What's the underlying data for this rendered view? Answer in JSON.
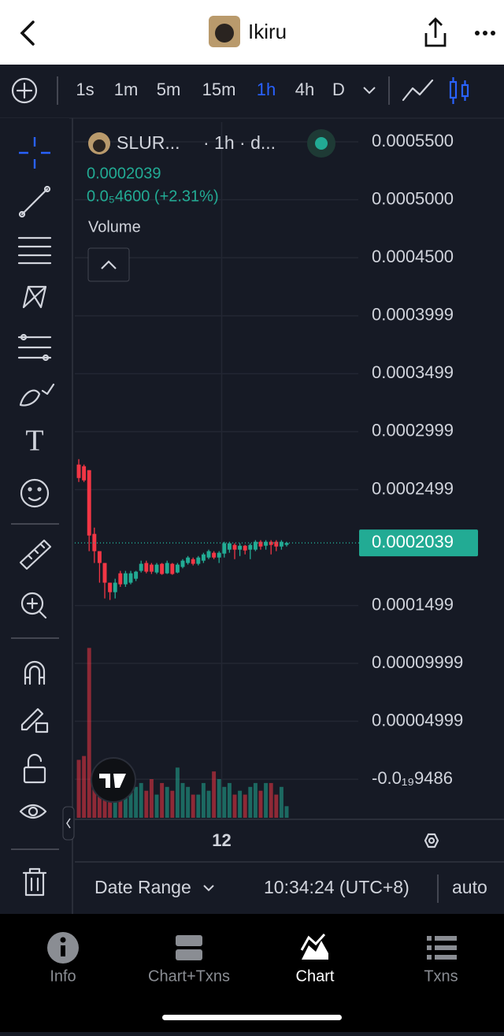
{
  "header": {
    "title": "Ikiru"
  },
  "timeframes": [
    "1s",
    "1m",
    "5m",
    "15m",
    "1h",
    "4h",
    "D"
  ],
  "chart_data": {
    "type": "candlestick",
    "symbol": "SLUR...",
    "interval": "· 1h · d...",
    "change": "0.0₅4600 (+2.31%)",
    "volume_title": "Volume",
    "up_color": "#22ab94",
    "down_color": "#f23645",
    "grid": true,
    "last_price": 0.0002039,
    "open": [
      0.0002715,
      0.0002701,
      0.0002667,
      0.0002117,
      0.0001968,
      0.0001866,
      0.0001696,
      0.0001614,
      0.0001777,
      0.0001682,
      0.0001696,
      0.000173,
      0.0001798,
      0.0001866,
      0.0001852,
      0.0001784,
      0.0001859,
      0.0001777,
      0.0001859,
      0.0001784,
      0.0001832,
      0.0001866,
      0.0001899,
      0.0001859,
      0.0001886,
      0.0001913,
      0.0001954,
      0.0001913,
      0.0001947,
      0.0001981,
      0.0002022,
      0.0001981,
      0.0002015,
      0.0001981,
      0.0001981,
      0.0002049,
      0.0002015,
      0.0002049,
      0.0002049,
      0.0002008,
      0.0002022
    ],
    "high": [
      0.0002762,
      0.0002715,
      0.0002667,
      0.0002171,
      0.0001968,
      0.0001866,
      0.0001696,
      0.000173,
      0.0001798,
      0.0001798,
      0.0001798,
      0.0001798,
      0.0001886,
      0.0001886,
      0.0001866,
      0.0001866,
      0.0001866,
      0.0001886,
      0.0001866,
      0.0001866,
      0.0001899,
      0.0001926,
      0.0001913,
      0.0001926,
      0.0001954,
      0.0001981,
      0.0001968,
      0.0001968,
      0.0002049,
      0.0002049,
      0.0002036,
      0.0002036,
      0.0002022,
      0.0002036,
      0.0002063,
      0.0002063,
      0.0002063,
      0.0002063,
      0.0002063,
      0.0002063,
      0.0002049
    ],
    "low": [
      0.0002565,
      0.0002565,
      0.0001968,
      0.0001866,
      0.0001696,
      0.000156,
      0.0001547,
      0.000156,
      0.000166,
      0.000166,
      0.0001682,
      0.000171,
      0.0001784,
      0.0001777,
      0.0001771,
      0.0001771,
      0.0001764,
      0.0001771,
      0.0001764,
      0.0001777,
      0.000182,
      0.0001852,
      0.0001845,
      0.0001845,
      0.0001866,
      0.0001899,
      0.0001899,
      0.0001866,
      0.0001913,
      0.0001954,
      0.0001899,
      0.0001926,
      0.000194,
      0.0001899,
      0.0001968,
      0.0001981,
      0.0001981,
      0.000194,
      0.0001968,
      0.0001981,
      0.0002008
    ],
    "close": [
      0.0002599,
      0.0002579,
      0.0002103,
      0.0001968,
      0.0001866,
      0.0001696,
      0.0001614,
      0.0001696,
      0.0001682,
      0.0001777,
      0.0001777,
      0.0001791,
      0.0001859,
      0.0001791,
      0.0001791,
      0.0001852,
      0.0001771,
      0.0001866,
      0.0001771,
      0.0001852,
      0.0001886,
      0.0001913,
      0.0001859,
      0.0001913,
      0.000194,
      0.0001968,
      0.0001913,
      0.0001954,
      0.0002036,
      0.0002036,
      0.0001981,
      0.0002015,
      0.0001974,
      0.0002022,
      0.0002049,
      0.0002008,
      0.0002049,
      0.0002022,
      0.0002008,
      0.0002049,
      0.0002039
    ],
    "volume": [
      75,
      80,
      220,
      60,
      45,
      70,
      50,
      45,
      30,
      35,
      55,
      40,
      45,
      35,
      50,
      30,
      45,
      40,
      35,
      65,
      45,
      40,
      30,
      30,
      45,
      35,
      60,
      50,
      40,
      45,
      30,
      35,
      30,
      40,
      45,
      35,
      45,
      45,
      30,
      40,
      15
    ],
    "volume_lim": [
      0,
      250
    ],
    "xlim": [
      -0.76,
      53.79
    ],
    "xticks": [
      {
        "value": 27.5,
        "label": "12"
      }
    ],
    "ylim": [
      -3.46e-05,
      0.000567
    ],
    "yticks": [
      {
        "value": 0.00055,
        "label": "0.0005500"
      },
      {
        "value": 0.0005,
        "label": "0.0005000"
      },
      {
        "value": 0.00045,
        "label": "0.0004500"
      },
      0.0003999,
      0.0003499,
      0.0002999,
      0.0002499,
      0.0001499,
      9.999e-05,
      4.999e-05,
      {
        "value": -9.486e-20,
        "label": "-0.0₁₉9486"
      }
    ]
  },
  "footer": {
    "date_range": "Date Range",
    "time": "10:34:24 (UTC+8)",
    "scale": "auto"
  },
  "tabs": [
    "Info",
    "Chart+Txns",
    "Chart",
    "Txns"
  ]
}
